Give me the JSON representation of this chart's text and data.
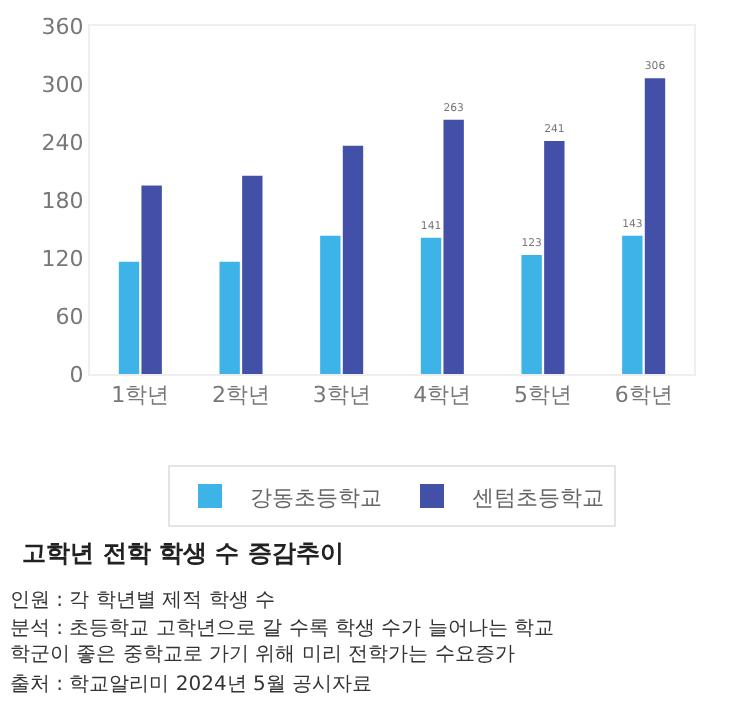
{
  "chart_data": {
    "type": "bar",
    "title": "고학년 전학 학생 수 증감추이",
    "categories": [
      "1학년",
      "2학년",
      "3학년",
      "4학년",
      "5학년",
      "6학년"
    ],
    "series": [
      {
        "name": "강동초등학교",
        "color": "#3db3e8",
        "values": [
          116,
          116,
          143,
          141,
          123,
          143
        ],
        "value_labels": [
          null,
          null,
          null,
          "141",
          "123",
          "143"
        ]
      },
      {
        "name": "센텀초등학교",
        "color": "#4350a8",
        "values": [
          195,
          205,
          236,
          263,
          241,
          306
        ],
        "value_labels": [
          null,
          null,
          null,
          "263",
          "241",
          "306"
        ]
      }
    ],
    "ylim": [
      0,
      360
    ],
    "yticks": [
      0,
      60,
      120,
      180,
      240,
      300,
      360
    ],
    "grid": false,
    "legend": "bottom",
    "annotations": [
      "인원 : 각 학년별 제적 학생 수",
      "분석 : 초등학교 고학년으로 갈 수록 학생 수가 늘어나는 학교\n학군이 좋은 중학교로 가기 위해 미리 전학가는 수요증가",
      "출처 : 학교알리미 2024년 5월 공시자료"
    ]
  }
}
